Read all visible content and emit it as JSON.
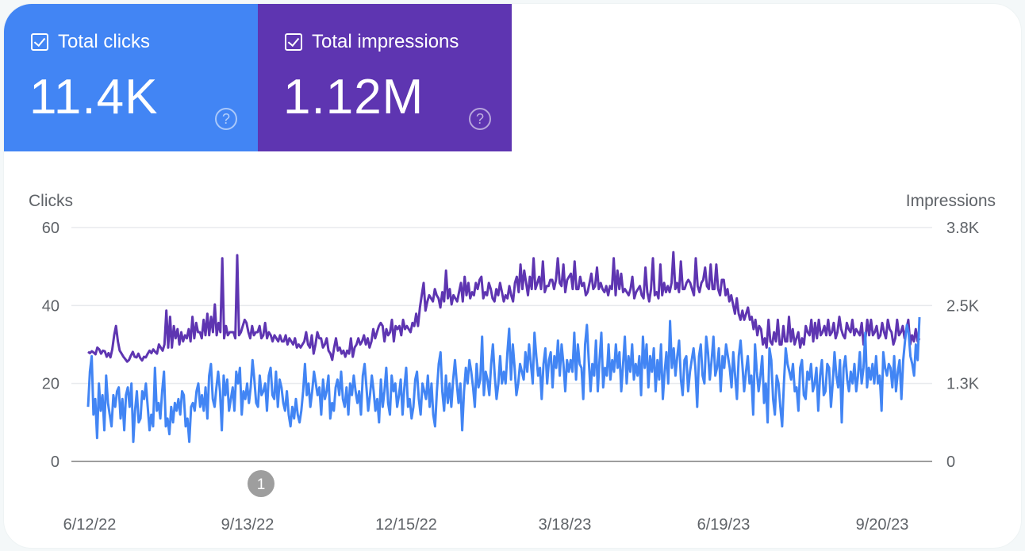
{
  "metrics": {
    "clicks": {
      "label": "Total clicks",
      "value": "11.4K",
      "color": "#4285f4",
      "checked": true
    },
    "impressions": {
      "label": "Total impressions",
      "value": "1.12M",
      "color": "#5e35b1",
      "checked": true
    },
    "help_glyph": "?"
  },
  "annotation": {
    "label": "1"
  },
  "chart_data": {
    "type": "line",
    "title": "",
    "ylabel_left": "Clicks",
    "ylabel_right": "Impressions",
    "x_tick_labels": [
      "6/12/22",
      "9/13/22",
      "12/15/22",
      "3/18/23",
      "6/19/23",
      "9/20/23"
    ],
    "y_left_ticks": [
      "0",
      "20",
      "40",
      "60"
    ],
    "y_right_ticks": [
      "0",
      "1.3K",
      "2.5K",
      "3.8K"
    ],
    "ylim_left": [
      0,
      60
    ],
    "ylim_right": [
      0,
      3800
    ],
    "grid": true,
    "x_range": [
      "6/10/22",
      "10/5/23"
    ],
    "series": [
      {
        "name": "Impressions",
        "axis": "right",
        "color": "#5e35b1",
        "values": [
          1780,
          1760,
          1790,
          1770,
          1740,
          1850,
          1820,
          1750,
          1800,
          1790,
          1700,
          1760,
          1690,
          1820,
          2050,
          2200,
          1950,
          1800,
          1750,
          1700,
          1660,
          1620,
          1650,
          1720,
          1780,
          1700,
          1690,
          1750,
          1680,
          1640,
          1700,
          1690,
          1750,
          1800,
          1760,
          1820,
          1780,
          1750,
          1900,
          1850,
          1800,
          1900,
          2450,
          1850,
          2350,
          1850,
          2200,
          2000,
          2150,
          1900,
          2100,
          1950,
          2050,
          2000,
          2150,
          1950,
          2350,
          2000,
          2250,
          2100,
          2100,
          2000,
          2300,
          2050,
          2400,
          2050,
          2350,
          2100,
          2550,
          2050,
          2250,
          2100,
          3300,
          2000,
          2200,
          2050,
          2100,
          2100,
          2100,
          2000,
          3350,
          2050,
          2100,
          2200,
          2300,
          2250,
          2100,
          2000,
          2200,
          2050,
          2100,
          2100,
          2200,
          2000,
          2050,
          2250,
          2000,
          2100,
          2050,
          1950,
          2050,
          2000,
          1950,
          2050,
          1950,
          1950,
          2050,
          1900,
          2000,
          1950,
          1900,
          2000,
          1850,
          1900,
          1850,
          1900,
          1950,
          2100,
          1900,
          1850,
          2050,
          1750,
          1900,
          2100,
          2000,
          2000,
          1850,
          1900,
          2000,
          1800,
          1750,
          1650,
          1850,
          2000,
          1800,
          1850,
          1750,
          1800,
          1700,
          1800,
          1750,
          2000,
          1700,
          1850,
          1900,
          2000,
          1900,
          1950,
          2050,
          1900,
          2000,
          1850,
          1950,
          2150,
          2000,
          2100,
          2200,
          2250,
          2200,
          1950,
          2150,
          2050,
          2100,
          2300,
          1950,
          2200,
          2150,
          2200,
          2050,
          2300,
          2150,
          2200,
          2150,
          2100,
          2250,
          2200,
          2400,
          2200,
          2500,
          2700,
          2900,
          2450,
          2600,
          2700,
          2650,
          2600,
          2800,
          2700,
          2650,
          2500,
          2750,
          2600,
          3100,
          2650,
          2800,
          2550,
          2700,
          2650,
          2600,
          2750,
          2900,
          2600,
          3000,
          2700,
          2900,
          2650,
          2750,
          2700,
          2900,
          2800,
          2950,
          3000,
          2650,
          2750,
          2700,
          2900,
          2800,
          2650,
          2600,
          2800,
          2700,
          2900,
          2750,
          2600,
          2700,
          2650,
          2850,
          2700,
          2600,
          2900,
          3000,
          2750,
          3200,
          2800,
          3100,
          2900,
          2700,
          3000,
          2800,
          3300,
          2800,
          2900,
          3000,
          2800,
          3250,
          2750,
          2850,
          2850,
          2950,
          2950,
          2800,
          2950,
          3300,
          2900,
          2850,
          3200,
          2750,
          2950,
          3000,
          3050,
          2800,
          3250,
          2800,
          2800,
          3000,
          2850,
          2900,
          2700,
          2750,
          2900,
          3050,
          2800,
          2850,
          3150,
          2800,
          2900,
          2800,
          2750,
          2850,
          2700,
          2850,
          2800,
          3300,
          2700,
          3100,
          2800,
          3050,
          2750,
          2800,
          2750,
          2700,
          2800,
          3000,
          2650,
          2750,
          2800,
          2850,
          2700,
          2650,
          3150,
          2750,
          2600,
          2800,
          3300,
          2700,
          2750,
          2650,
          3200,
          2700,
          2900,
          2750,
          2850,
          2750,
          2900,
          3400,
          2800,
          2900,
          2750,
          3250,
          2800,
          2800,
          2900,
          2950,
          2900,
          2800,
          2700,
          3300,
          2850,
          2750,
          2900,
          2950,
          3150,
          2850,
          2800,
          3200,
          2800,
          2800,
          3200,
          2800,
          2700,
          2950,
          2950,
          2700,
          2800,
          2600,
          2700,
          2550,
          2400,
          2650,
          2400,
          2300,
          2450,
          2300,
          2400,
          2500,
          2300,
          2350,
          2150,
          2300,
          2050,
          2200,
          2150,
          1900,
          2000,
          1850,
          2300,
          1950,
          1900,
          2100,
          1950,
          2300,
          1900,
          1900,
          2200,
          1950,
          1950,
          2350,
          1950,
          2150,
          1900,
          2000,
          2100,
          1850,
          2000,
          1900,
          2200,
          2100,
          2050,
          2300,
          1950,
          2250,
          2000,
          2300,
          2050,
          2100,
          2200,
          2050,
          2300,
          2050,
          2100,
          2250,
          2000,
          2100,
          2350,
          2150,
          2050,
          2000,
          2250,
          2150,
          2100,
          2300,
          2050,
          2150,
          2100,
          2050,
          2250,
          1900,
          2000,
          2300,
          2050,
          2300,
          2050,
          2100,
          2200,
          2000,
          2050,
          2250,
          2100,
          2000,
          2300,
          2150,
          2100,
          1900,
          2000,
          2300,
          2050,
          2100,
          2200,
          2000,
          2150,
          2300,
          1900,
          2050,
          1950,
          2150,
          1950,
          2000
        ]
      },
      {
        "name": "Clicks",
        "axis": "left",
        "color": "#4285f4",
        "values": [
          14,
          23,
          27,
          12,
          16,
          6,
          20,
          13,
          17,
          8,
          22,
          15,
          12,
          9,
          17,
          14,
          18,
          19,
          11,
          16,
          8,
          17,
          19,
          14,
          20,
          5,
          13,
          18,
          10,
          11,
          18,
          16,
          20,
          14,
          8,
          12,
          9,
          24,
          13,
          15,
          11,
          18,
          23,
          9,
          11,
          7,
          14,
          10,
          15,
          13,
          16,
          12,
          18,
          17,
          9,
          11,
          5,
          14,
          15,
          13,
          18,
          20,
          14,
          17,
          13,
          19,
          11,
          22,
          25,
          16,
          14,
          19,
          23,
          18,
          8,
          22,
          17,
          21,
          13,
          16,
          19,
          13,
          23,
          20,
          24,
          12,
          18,
          16,
          20,
          15,
          19,
          26,
          21,
          15,
          14,
          22,
          17,
          18,
          20,
          13,
          22,
          24,
          17,
          16,
          23,
          14,
          21,
          19,
          15,
          13,
          18,
          12,
          9,
          14,
          11,
          16,
          12,
          10,
          13,
          18,
          25,
          17,
          20,
          14,
          18,
          23,
          20,
          17,
          19,
          12,
          21,
          16,
          18,
          22,
          11,
          15,
          13,
          19,
          21,
          17,
          23,
          16,
          14,
          19,
          12,
          20,
          17,
          22,
          18,
          15,
          18,
          12,
          22,
          25,
          19,
          13,
          17,
          22,
          18,
          13,
          16,
          10,
          21,
          14,
          18,
          24,
          15,
          12,
          22,
          18,
          20,
          14,
          17,
          21,
          12,
          19,
          24,
          14,
          16,
          11,
          14,
          21,
          23,
          16,
          12,
          20,
          18,
          16,
          22,
          14,
          20,
          12,
          9,
          18,
          25,
          28,
          18,
          13,
          22,
          15,
          20,
          14,
          21,
          26,
          20,
          15,
          20,
          8,
          18,
          24,
          20,
          26,
          23,
          19,
          14,
          25,
          19,
          21,
          32,
          17,
          23,
          21,
          17,
          25,
          30,
          22,
          16,
          20,
          27,
          20,
          23,
          20,
          28,
          34,
          21,
          30,
          24,
          17,
          20,
          25,
          23,
          21,
          28,
          23,
          30,
          25,
          20,
          33,
          27,
          22,
          24,
          16,
          25,
          29,
          20,
          26,
          28,
          19,
          27,
          24,
          31,
          22,
          30,
          25,
          18,
          26,
          23,
          26,
          23,
          33,
          21,
          30,
          25,
          24,
          16,
          30,
          35,
          26,
          18,
          25,
          22,
          31,
          18,
          26,
          33,
          19,
          24,
          22,
          30,
          21,
          26,
          23,
          30,
          24,
          28,
          18,
          25,
          32,
          20,
          27,
          23,
          30,
          21,
          25,
          22,
          27,
          17,
          32,
          24,
          30,
          19,
          27,
          23,
          29,
          18,
          26,
          21,
          30,
          16,
          23,
          28,
          20,
          36,
          24,
          29,
          22,
          27,
          31,
          21,
          17,
          26,
          27,
          18,
          23,
          26,
          29,
          24,
          14,
          27,
          30,
          22,
          20,
          32,
          28,
          21,
          26,
          32,
          22,
          24,
          29,
          18,
          27,
          24,
          30,
          27,
          24,
          19,
          28,
          22,
          16,
          27,
          31,
          25,
          18,
          23,
          27,
          20,
          22,
          12,
          30,
          23,
          18,
          22,
          27,
          15,
          20,
          10,
          29,
          26,
          16,
          12,
          22,
          20,
          14,
          9,
          20,
          29,
          25,
          23,
          21,
          25,
          18,
          19,
          13,
          24,
          26,
          17,
          16,
          23,
          21,
          25,
          18,
          20,
          24,
          13,
          22,
          26,
          17,
          18,
          25,
          24,
          14,
          20,
          28,
          22,
          19,
          26,
          10,
          24,
          27,
          21,
          18,
          23,
          20,
          25,
          18,
          22,
          28,
          20,
          24,
          33,
          19,
          24,
          21,
          25,
          20,
          27,
          20,
          22,
          13,
          28,
          24,
          22,
          25,
          24,
          19,
          27,
          18,
          23,
          26,
          16,
          26,
          31,
          35,
          33,
          27,
          25,
          22,
          30,
          26,
          37
        ]
      }
    ]
  }
}
